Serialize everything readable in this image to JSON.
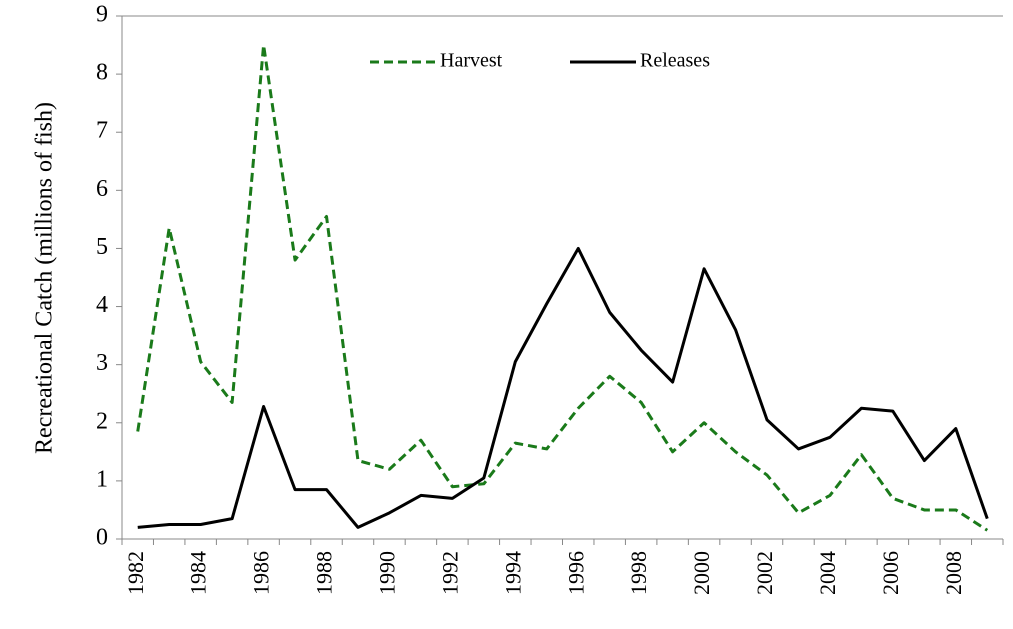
{
  "chart_data": {
    "type": "line",
    "ylabel": "Recreational Catch (millions of fish)",
    "categories": [
      "1982",
      null,
      "1984",
      null,
      "1986",
      null,
      "1988",
      null,
      "1990",
      null,
      "1992",
      null,
      "1994",
      null,
      "1996",
      null,
      "1998",
      null,
      "2000",
      null,
      "2002",
      null,
      "2004",
      null,
      "2006",
      null,
      "2008",
      null
    ],
    "series": [
      {
        "name": "Harvest",
        "color": "#1a7a1a",
        "dash": true,
        "values": [
          1.85,
          5.35,
          3.05,
          2.35,
          8.5,
          4.8,
          5.55,
          1.35,
          1.2,
          1.7,
          0.9,
          0.95,
          1.65,
          1.55,
          2.25,
          2.8,
          2.35,
          1.5,
          2.0,
          1.5,
          1.1,
          0.45,
          0.75,
          1.45,
          0.7,
          0.5,
          0.5,
          0.15
        ]
      },
      {
        "name": "Releases",
        "color": "#000000",
        "dash": false,
        "values": [
          0.2,
          0.25,
          0.25,
          0.35,
          2.28,
          0.85,
          0.85,
          0.2,
          0.45,
          0.75,
          0.7,
          1.05,
          3.05,
          4.05,
          5.0,
          3.9,
          3.25,
          2.7,
          4.65,
          3.6,
          2.05,
          1.55,
          1.75,
          2.25,
          2.2,
          1.35,
          1.9,
          0.35
        ]
      }
    ],
    "ylim": [
      0,
      9
    ],
    "yticks": [
      0,
      1,
      2,
      3,
      4,
      5,
      6,
      7,
      8,
      9
    ],
    "grid": false,
    "legend": "top"
  }
}
